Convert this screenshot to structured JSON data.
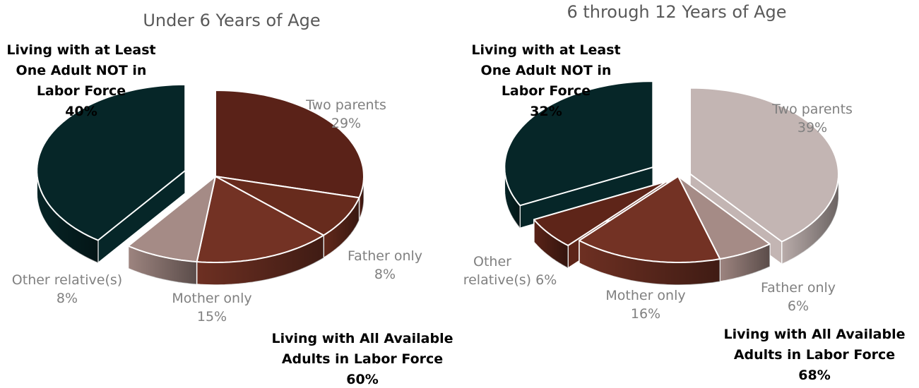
{
  "chart_data": [
    {
      "type": "pie",
      "title": "Under 6 Years of Age",
      "slices": [
        {
          "label": "Two parents",
          "value_label": "29%",
          "value": 29,
          "color": "#5a2218"
        },
        {
          "label": "Father only",
          "value_label": "8%",
          "value": 8,
          "color": "#672b1d"
        },
        {
          "label": "Mother only",
          "value_label": "15%",
          "value": 15,
          "color": "#733224"
        },
        {
          "label": "Other relative(s)",
          "value_label": "8%",
          "value": 8,
          "color": "#a58b86"
        },
        {
          "label": "",
          "value_label": "",
          "value": 40,
          "color": "#062628"
        }
      ],
      "groups": [
        {
          "lines": [
            "Living with at Least",
            "One Adult NOT in",
            "Labor Force"
          ],
          "value_label": "40%",
          "value": 40
        },
        {
          "lines": [
            "Living with All Available",
            "Adults in Labor Force"
          ],
          "value_label": "60%",
          "value": 60
        }
      ]
    },
    {
      "type": "pie",
      "title": "6 through 12 Years of Age",
      "slices": [
        {
          "label": "Two parents",
          "value_label": "39%",
          "value": 39,
          "color": "#c3b5b3"
        },
        {
          "label": "Father only",
          "value_label": "6%",
          "value": 6,
          "color": "#a58b86"
        },
        {
          "label": "Mother only",
          "value_label": "16%",
          "value": 16,
          "color": "#733224"
        },
        {
          "label": "Other relative(s) 6%",
          "value_label": "",
          "value": 6,
          "color": "#5e2519"
        },
        {
          "label": "",
          "value_label": "",
          "value": 32,
          "color": "#062628"
        }
      ],
      "groups": [
        {
          "lines": [
            "Living with at Least",
            "One Adult NOT in",
            "Labor Force"
          ],
          "value_label": "32%",
          "value": 32
        },
        {
          "lines": [
            "Living with All Available",
            "Adults in Labor Force"
          ],
          "value_label": "68%",
          "value": 68
        }
      ]
    }
  ]
}
